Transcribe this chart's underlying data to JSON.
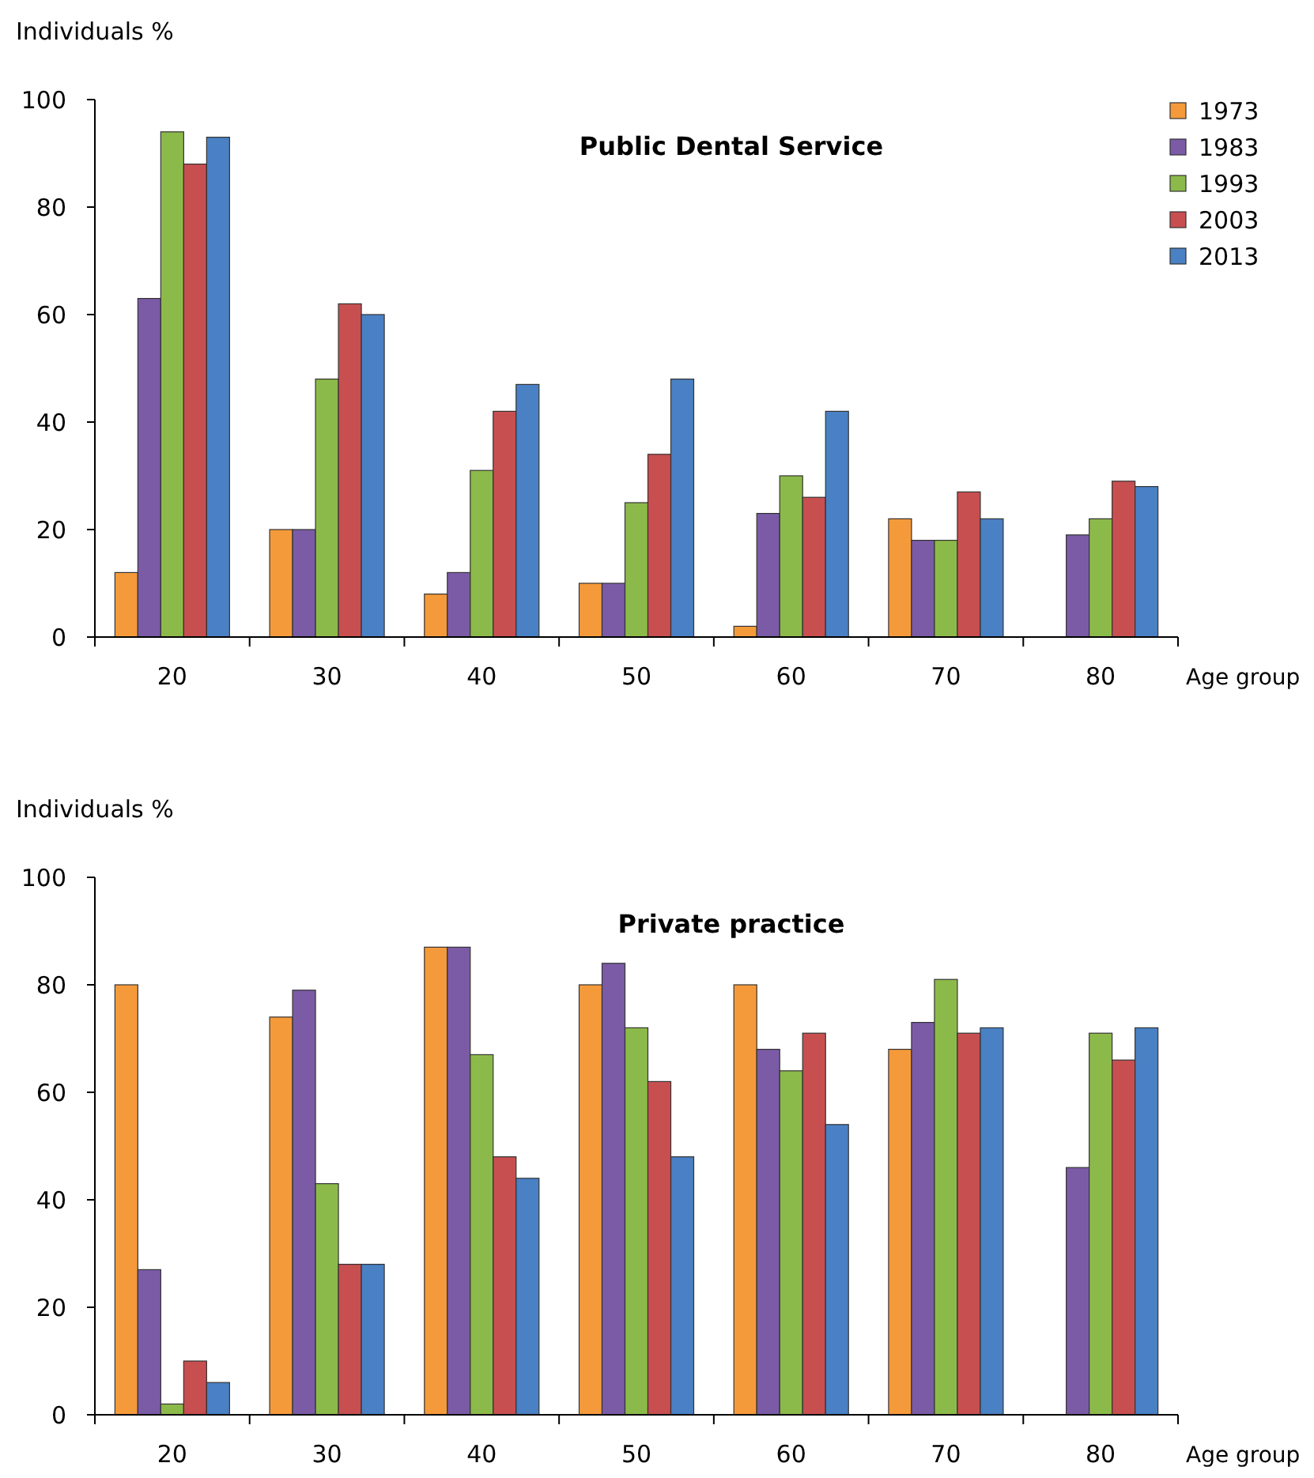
{
  "chart_data": [
    {
      "type": "bar",
      "title": "Public Dental Service",
      "xlabel": "Age group",
      "ylabel": "Individuals %",
      "categories": [
        "20",
        "30",
        "40",
        "50",
        "60",
        "70",
        "80"
      ],
      "ylim": [
        0,
        100
      ],
      "yticks": [
        0,
        20,
        40,
        60,
        80,
        100
      ],
      "grid": false,
      "legend": "top right",
      "series": [
        {
          "name": "1973",
          "color": "#f59a3a",
          "values": [
            12,
            20,
            8,
            10,
            2,
            22,
            null
          ]
        },
        {
          "name": "1983",
          "color": "#7b5ba6",
          "values": [
            63,
            20,
            12,
            10,
            23,
            18,
            19
          ]
        },
        {
          "name": "1993",
          "color": "#8cba4a",
          "values": [
            94,
            48,
            31,
            25,
            30,
            18,
            22
          ]
        },
        {
          "name": "2003",
          "color": "#c84f50",
          "values": [
            88,
            62,
            42,
            34,
            26,
            27,
            29
          ]
        },
        {
          "name": "2013",
          "color": "#4a80c4",
          "values": [
            93,
            60,
            47,
            48,
            42,
            22,
            28
          ]
        }
      ]
    },
    {
      "type": "bar",
      "title": "Private practice",
      "xlabel": "Age group",
      "ylabel": "Individuals %",
      "categories": [
        "20",
        "30",
        "40",
        "50",
        "60",
        "70",
        "80"
      ],
      "ylim": [
        0,
        100
      ],
      "yticks": [
        0,
        20,
        40,
        60,
        80,
        100
      ],
      "grid": false,
      "legend": false,
      "series": [
        {
          "color": "#f59a3a",
          "values": [
            80,
            74,
            87,
            80,
            80,
            68,
            null
          ]
        },
        {
          "color": "#7b5ba6",
          "values": [
            27,
            79,
            87,
            84,
            68,
            73,
            46
          ]
        },
        {
          "color": "#8cba4a",
          "values": [
            2,
            43,
            67,
            72,
            64,
            81,
            71
          ]
        },
        {
          "color": "#c84f50",
          "values": [
            10,
            28,
            48,
            62,
            71,
            71,
            66
          ]
        },
        {
          "color": "#4a80c4",
          "values": [
            6,
            28,
            44,
            48,
            54,
            72,
            72
          ]
        }
      ]
    }
  ]
}
